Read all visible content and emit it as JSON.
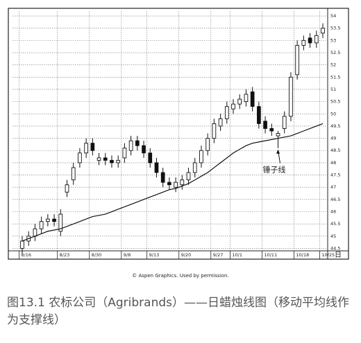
{
  "chart_data": {
    "type": "candlestick",
    "categories": [
      "8/16",
      null,
      null,
      null,
      null,
      null,
      "8/23",
      null,
      null,
      null,
      null,
      "8/30",
      null,
      null,
      null,
      null,
      "9/8",
      null,
      null,
      null,
      "9/13",
      null,
      null,
      null,
      null,
      "9/20",
      null,
      null,
      null,
      null,
      "9/27",
      null,
      null,
      "10/1",
      null,
      null,
      null,
      null,
      "10/11",
      null,
      null,
      null,
      null,
      "10/18",
      null,
      null,
      null,
      "10/25"
    ],
    "open": [
      44.5,
      44.8,
      45.0,
      45.3,
      45.6,
      45.7,
      45.2,
      46.8,
      47.3,
      48.0,
      48.4,
      48.8,
      48.1,
      48.2,
      48.1,
      48.0,
      48.2,
      48.5,
      48.9,
      48.7,
      48.4,
      48.0,
      47.6,
      47.2,
      47.0,
      47.1,
      47.3,
      47.6,
      48.0,
      48.5,
      49.0,
      49.5,
      49.8,
      50.2,
      50.4,
      50.5,
      50.9,
      50.3,
      49.7,
      49.4,
      49.1,
      49.4,
      49.9,
      51.6,
      52.8,
      53.1,
      52.9,
      53.3
    ],
    "high": [
      45.0,
      45.2,
      45.5,
      45.8,
      45.9,
      45.9,
      46.1,
      47.3,
      48.0,
      48.6,
      49.0,
      49.0,
      48.4,
      48.4,
      48.3,
      48.3,
      48.8,
      49.1,
      49.1,
      48.9,
      48.6,
      48.2,
      47.8,
      47.4,
      47.4,
      47.5,
      47.8,
      48.2,
      48.7,
      49.2,
      49.8,
      50.0,
      50.5,
      50.6,
      50.8,
      51.0,
      51.1,
      50.5,
      49.9,
      49.6,
      49.3,
      50.1,
      51.7,
      53.0,
      53.2,
      53.3,
      53.4,
      53.7
    ],
    "low": [
      44.3,
      44.6,
      44.8,
      45.1,
      45.4,
      45.4,
      45.0,
      46.6,
      47.1,
      47.8,
      48.2,
      48.3,
      47.9,
      47.9,
      47.8,
      47.8,
      48.0,
      48.3,
      48.5,
      48.2,
      47.8,
      47.4,
      47.0,
      46.9,
      46.8,
      46.9,
      47.1,
      47.4,
      47.8,
      48.3,
      48.8,
      49.3,
      49.6,
      50.0,
      50.2,
      50.3,
      50.1,
      49.4,
      49.2,
      49.1,
      48.6,
      49.2,
      49.7,
      51.4,
      52.6,
      52.7,
      52.7,
      53.1
    ],
    "close": [
      44.8,
      45.0,
      45.3,
      45.6,
      45.7,
      45.6,
      45.9,
      47.1,
      47.8,
      48.4,
      48.8,
      48.5,
      48.2,
      48.1,
      48.0,
      48.1,
      48.6,
      48.9,
      48.7,
      48.4,
      48.0,
      47.6,
      47.2,
      47.1,
      47.2,
      47.3,
      47.6,
      48.0,
      48.5,
      49.0,
      49.6,
      49.8,
      50.3,
      50.4,
      50.6,
      50.8,
      50.3,
      49.6,
      49.4,
      49.3,
      49.2,
      49.9,
      51.5,
      52.8,
      53.0,
      52.9,
      53.2,
      53.5
    ],
    "moving_average": [
      44.8,
      44.9,
      45.0,
      45.1,
      45.2,
      45.25,
      45.3,
      45.4,
      45.5,
      45.6,
      45.7,
      45.8,
      45.85,
      45.9,
      46.0,
      46.1,
      46.2,
      46.3,
      46.4,
      46.5,
      46.6,
      46.7,
      46.8,
      46.9,
      46.95,
      47.05,
      47.15,
      47.3,
      47.45,
      47.6,
      47.8,
      48.0,
      48.2,
      48.4,
      48.55,
      48.7,
      48.8,
      48.85,
      48.9,
      48.95,
      49.0,
      49.05,
      49.1,
      49.2,
      49.3,
      49.4,
      49.5,
      49.6
    ],
    "ylim": [
      44.4,
      54.2
    ],
    "yticks": [
      44.5,
      45,
      45.5,
      46,
      46.5,
      47,
      47.5,
      48,
      48.5,
      49,
      49.5,
      50,
      50.5,
      51,
      51.5,
      52,
      52.5,
      53,
      53.5,
      54
    ],
    "grid": true,
    "period_label": "日",
    "annotation": {
      "text": "锤子线",
      "index": 40
    },
    "credit": "© Aspen Graphics. Used by permission."
  },
  "caption": "图13.1 农标公司（Agribrands）——日蜡烛线图（移动平均线作为支撑线）"
}
